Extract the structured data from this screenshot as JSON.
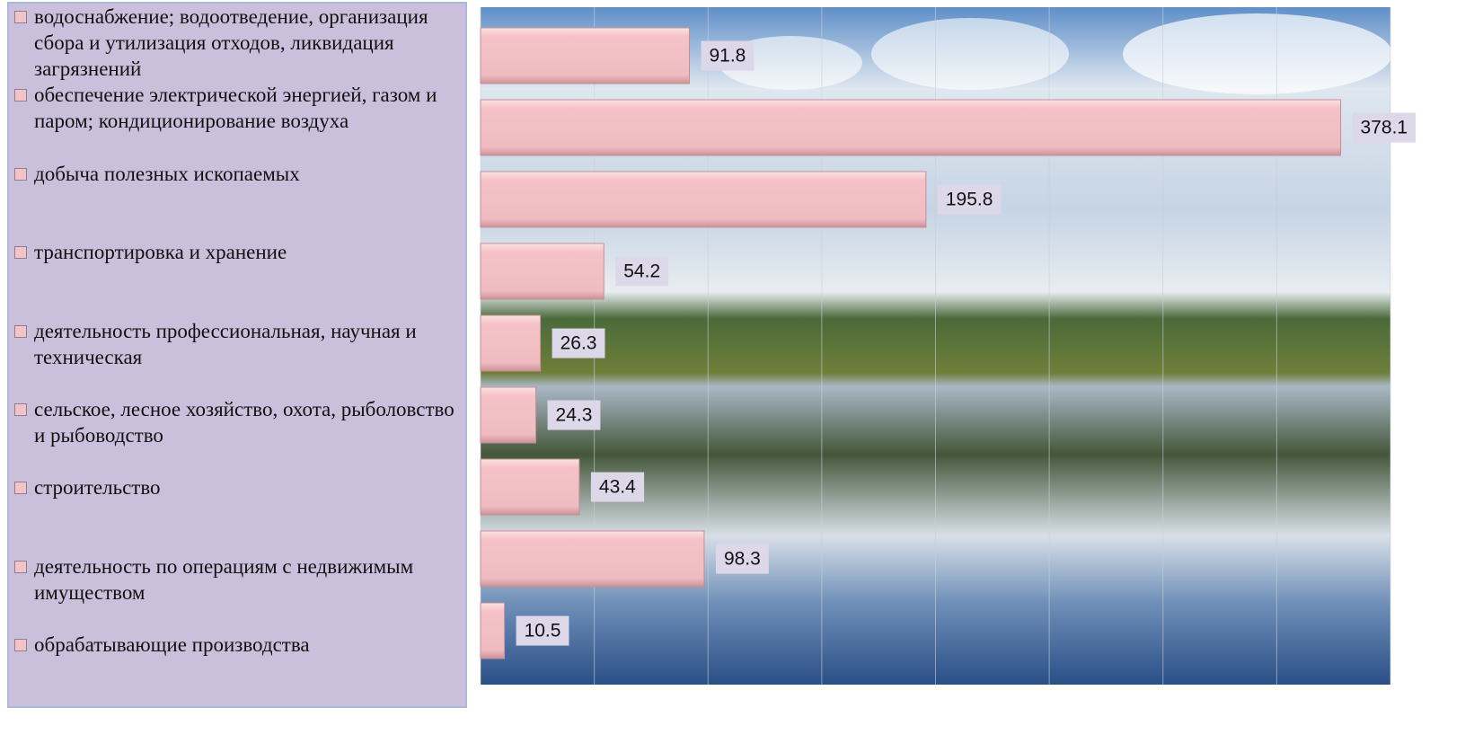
{
  "chart_data": {
    "type": "bar",
    "orientation": "horizontal",
    "categories": [
      "водоснабжение; водоотведение, организация сбора и утилизация отходов, ликвидация загрязнений",
      "обеспечение электрической энергией, газом и паром; кондиционирование воздуха",
      "добыча полезных ископаемых",
      "транспортировка и хранение",
      "деятельность профессиональная, научная и техническая",
      "сельское, лесное хозяйство, охота, рыболовство и рыбоводство",
      "строительство",
      "деятельность по операциям с недвижимым имуществом",
      "обрабатывающие производства"
    ],
    "values": [
      91.8,
      378.1,
      195.8,
      54.2,
      26.3,
      24.3,
      43.4,
      98.3,
      10.5
    ],
    "color": "#f4c3c7",
    "xlim": [
      0,
      400
    ],
    "xticks": [
      0,
      50,
      100,
      150,
      200,
      250,
      300,
      350,
      400
    ],
    "grid": true
  }
}
